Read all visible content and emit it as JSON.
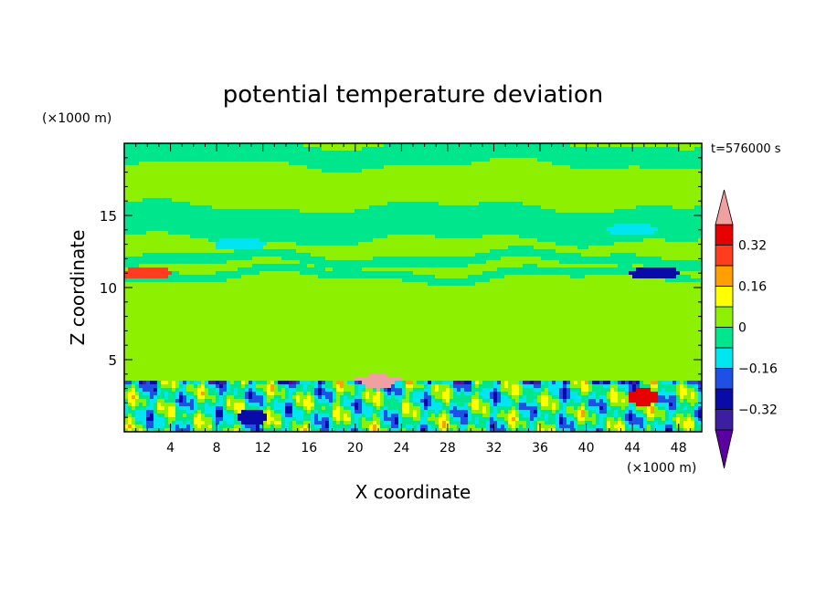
{
  "chart_data": {
    "type": "heatmap",
    "title": "potential temperature deviation",
    "xlabel": "X coordinate",
    "ylabel": "Z coordinate",
    "x_unit": "(×1000 m)",
    "y_unit": "(×1000 m)",
    "time_label": "t=576000 s",
    "xlim": [
      0,
      50
    ],
    "ylim": [
      0,
      20
    ],
    "x_ticks": [
      4,
      8,
      12,
      16,
      20,
      24,
      28,
      32,
      36,
      40,
      44,
      48
    ],
    "y_ticks": [
      5,
      10,
      15
    ],
    "x_tick_labels": [
      "4",
      "8",
      "12",
      "16",
      "20",
      "24",
      "28",
      "32",
      "36",
      "40",
      "44",
      "48"
    ],
    "y_tick_labels": [
      "5",
      "10",
      "15"
    ],
    "colorbar": {
      "levels": [
        -0.4,
        -0.32,
        -0.24,
        -0.16,
        -0.08,
        0,
        0.08,
        0.16,
        0.24,
        0.32,
        0.4
      ],
      "colors": [
        "#5a00a0",
        "#3c1fa0",
        "#0a0aa8",
        "#1f50e6",
        "#00e6f0",
        "#00e68c",
        "#8cf000",
        "#ffff00",
        "#ffa000",
        "#ff3c1e",
        "#e60000",
        "#f0a0a0"
      ],
      "tick_values": [
        0.32,
        0.16,
        0,
        -0.16,
        -0.32
      ],
      "tick_labels": [
        "0.32",
        "0.16",
        "0",
        "−0.16",
        "−0.32"
      ]
    },
    "features": [
      {
        "kind": "band",
        "z": [
          18.5,
          20
        ],
        "value": -0.04
      },
      {
        "kind": "band",
        "z": [
          13.3,
          15.6
        ],
        "value": -0.04
      },
      {
        "kind": "band",
        "z": [
          11.6,
          12.3
        ],
        "value": -0.04
      },
      {
        "kind": "band",
        "z": [
          10.6,
          11.2
        ],
        "value": -0.04
      },
      {
        "kind": "region",
        "x": [
          0,
          16
        ],
        "z": [
          4,
          10.5
        ],
        "value": 0.04
      },
      {
        "kind": "region",
        "x": [
          42,
          50
        ],
        "z": [
          4,
          10.5
        ],
        "value": 0.04
      },
      {
        "kind": "blob",
        "x": 25,
        "z": 20,
        "value": -0.04
      },
      {
        "kind": "blob",
        "x": 10,
        "z": 13,
        "value": -0.12
      },
      {
        "kind": "blob",
        "x": 44,
        "z": 14,
        "value": -0.12
      },
      {
        "kind": "blob",
        "x": 2,
        "z": 11,
        "value": 0.28
      },
      {
        "kind": "blob",
        "x": 46,
        "z": 11,
        "value": -0.3
      },
      {
        "kind": "layer",
        "z": [
          3.2,
          3.6
        ],
        "value": -0.12
      },
      {
        "kind": "layer",
        "z": [
          0,
          3.2
        ],
        "value": -0.05
      },
      {
        "kind": "blob",
        "x": 22,
        "z": 3.5,
        "value": 0.42
      },
      {
        "kind": "blob",
        "x": 45,
        "z": 2.4,
        "value": 0.38
      },
      {
        "kind": "blob",
        "x": 11,
        "z": 1,
        "value": -0.3
      }
    ]
  }
}
